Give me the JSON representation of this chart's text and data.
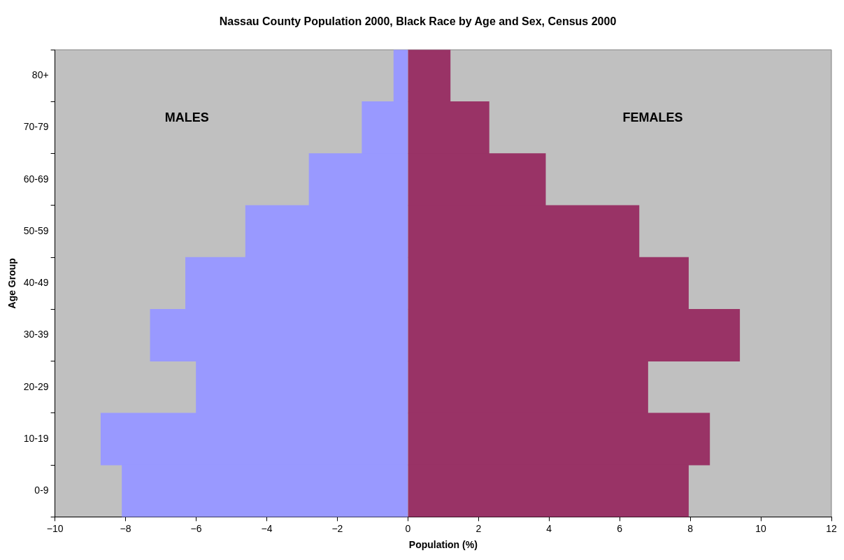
{
  "chart_data": {
    "type": "bar",
    "orientation": "horizontal",
    "stacked": true,
    "title": "Nassau County Population 2000, Black Race by Age and Sex, Census 2000",
    "xlabel": "Population (%)",
    "ylabel": "Age Group",
    "categories": [
      "80+",
      "70-79",
      "60-69",
      "50-59",
      "40-49",
      "30-39",
      "20-29",
      "10-19",
      "0-9"
    ],
    "series": [
      {
        "color": "#9999ff",
        "values": [
          -0.4,
          -1.3,
          -2.8,
          -4.6,
          -6.3,
          -7.3,
          -6.0,
          -8.7,
          -8.1
        ]
      },
      {
        "color": "#993366",
        "values": [
          1.2,
          2.3,
          3.9,
          6.55,
          7.95,
          9.4,
          6.8,
          8.55,
          7.95
        ]
      }
    ],
    "xlim": [
      -10,
      12
    ],
    "xticks": [
      -10,
      -8,
      -6,
      -4,
      -2,
      0,
      2,
      4,
      6,
      8,
      10,
      12
    ],
    "annotations": [
      "MALES",
      "FEMALES"
    ],
    "grid": false,
    "legend": false
  }
}
